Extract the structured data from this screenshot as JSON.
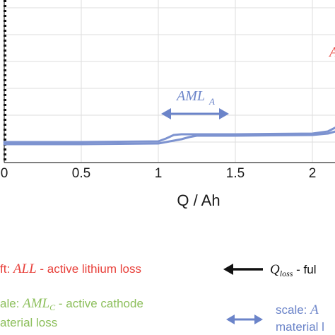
{
  "chart_data": {
    "type": "line",
    "xlabel": "Q / Ah",
    "xticks": [
      "0",
      "0.5",
      "1",
      "1.5",
      "2"
    ],
    "xlim": [
      0,
      2.25
    ],
    "grid": true,
    "series": [
      {
        "x": [
          0,
          0.5,
          1.0,
          1.05,
          1.1,
          1.15,
          1.2,
          1.5,
          2.0,
          2.1,
          2.2,
          2.25
        ],
        "y": [
          0.0,
          0.0,
          0.01,
          0.05,
          0.1,
          0.11,
          0.11,
          0.11,
          0.12,
          0.15,
          0.26,
          0.29
        ]
      },
      {
        "x": [
          0,
          0.5,
          1.0,
          1.05,
          1.1,
          1.15,
          1.2,
          1.25,
          1.5,
          2.0,
          2.1,
          2.2,
          2.25
        ],
        "y": [
          -0.03,
          -0.03,
          -0.02,
          0.0,
          0.02,
          0.04,
          0.07,
          0.09,
          0.09,
          0.1,
          0.12,
          0.18,
          0.22
        ]
      }
    ],
    "vline_x": 0,
    "annotations": [
      {
        "label": "AML",
        "subscript": "A"
      }
    ],
    "colors": {
      "series": "#7d93d0",
      "arrow": "#6b84c9",
      "vline": "#111111",
      "grid": "#dedede",
      "axis": "#333333"
    }
  },
  "legend": [
    {
      "text_before": "ft: ",
      "symbol": "ALL",
      "symbol_sub": "",
      "text_after": " - active lithium loss",
      "color": "#e8403a"
    },
    {
      "text_before": "ale: ",
      "symbol": "AML",
      "symbol_sub": "C",
      "text_after": " - active cathode",
      "color": "#8cbf5b"
    },
    {
      "text_before": "aterial loss",
      "symbol": "",
      "symbol_sub": "",
      "text_after": "",
      "color": "#8cbf5b"
    },
    {
      "symbol": "Q",
      "symbol_sub": "loss",
      "text_after": " - ful",
      "color": "#111111",
      "marker": "black-arrow"
    },
    {
      "text_before": "scale: ",
      "symbol": "A",
      "symbol_sub": "",
      "text_after": "",
      "color": "#6b84c9",
      "marker": "blue-double-arrow"
    },
    {
      "text_before": "material l",
      "symbol": "",
      "symbol_sub": "",
      "text_after": "",
      "color": "#6b84c9"
    }
  ]
}
